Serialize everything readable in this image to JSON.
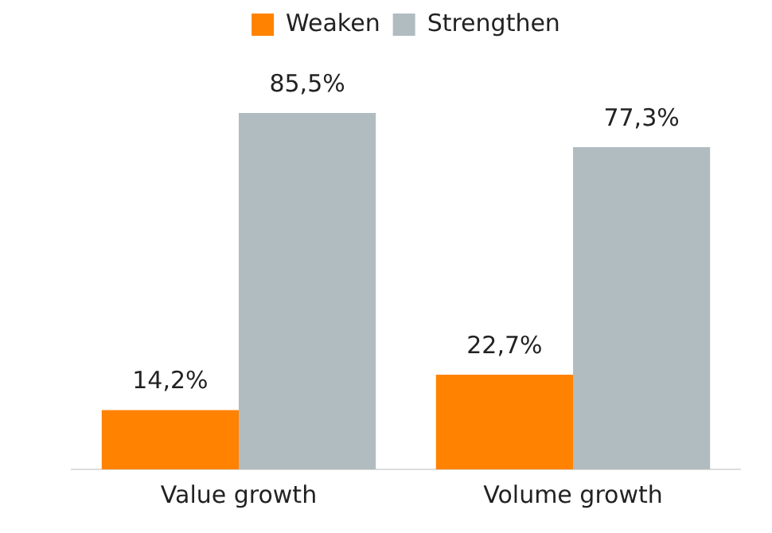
{
  "chart_data": {
    "type": "bar",
    "categories": [
      "Value growth",
      "Volume growth"
    ],
    "series": [
      {
        "name": "Weaken",
        "color": "#ff8200",
        "values": [
          14.2,
          22.7
        ],
        "value_labels": [
          "14,2%",
          "22,7%"
        ]
      },
      {
        "name": "Strengthen",
        "color": "#b1bcc1",
        "values": [
          85.5,
          77.3
        ],
        "value_labels": [
          "85,5%",
          "77,3%"
        ]
      }
    ],
    "legend": "top",
    "grid": false,
    "tick_labels": "x"
  }
}
